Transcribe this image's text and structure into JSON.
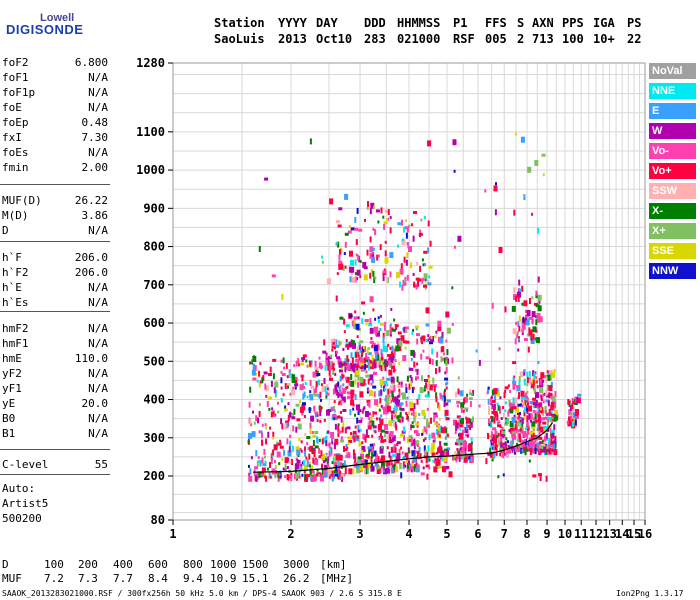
{
  "logo": {
    "top": "Lowell",
    "main": "DIGISONDE"
  },
  "header": {
    "row1": [
      "Station",
      "YYYY",
      "DAY",
      "DDD",
      "HHMMSS",
      "P1",
      "FFS",
      "S",
      "AXN",
      "PPS",
      "IGA",
      "PS"
    ],
    "row2": [
      "SaoLuis",
      "2013",
      "Oct10",
      "283",
      "021000",
      "RSF",
      "005",
      "2",
      "713",
      "100",
      "10+",
      "22"
    ]
  },
  "params": {
    "group1": [
      {
        "name": "foF2",
        "value": "6.800"
      },
      {
        "name": "foF1",
        "value": "N/A"
      },
      {
        "name": "foF1p",
        "value": "N/A"
      },
      {
        "name": "foE",
        "value": "N/A"
      },
      {
        "name": "foEp",
        "value": "0.48"
      },
      {
        "name": "fxI",
        "value": "7.30"
      },
      {
        "name": "foEs",
        "value": "N/A"
      },
      {
        "name": "fmin",
        "value": "2.00"
      }
    ],
    "group2": [
      {
        "name": "MUF(D)",
        "value": "26.22"
      },
      {
        "name": "M(D)",
        "value": "3.86"
      },
      {
        "name": "D",
        "value": "N/A"
      }
    ],
    "group3": [
      {
        "name": "h`F",
        "value": "206.0"
      },
      {
        "name": "h`F2",
        "value": "206.0"
      },
      {
        "name": "h`E",
        "value": "N/A"
      },
      {
        "name": "h`Es",
        "value": "N/A"
      }
    ],
    "group4": [
      {
        "name": "hmF2",
        "value": "N/A"
      },
      {
        "name": "hmF1",
        "value": "N/A"
      },
      {
        "name": "hmE",
        "value": "110.0"
      },
      {
        "name": "yF2",
        "value": "N/A"
      },
      {
        "name": "yF1",
        "value": "N/A"
      },
      {
        "name": "yE",
        "value": "20.0"
      },
      {
        "name": "B0",
        "value": "N/A"
      },
      {
        "name": "B1",
        "value": "N/A"
      }
    ],
    "clevel": {
      "name": "C-level",
      "value": "55"
    }
  },
  "auto": {
    "line1": "Auto:",
    "line2": "Artist5",
    "line3": "500200"
  },
  "legend": [
    {
      "label": "NoVal",
      "color": "#a0a0a0"
    },
    {
      "label": "NNE",
      "color": "#00e8f0"
    },
    {
      "label": "E",
      "color": "#3aa0ff"
    },
    {
      "label": "W",
      "color": "#b000b0"
    },
    {
      "label": "Vo-",
      "color": "#ff40b0"
    },
    {
      "label": "Vo+",
      "color": "#ff0040"
    },
    {
      "label": "SSW",
      "color": "#ffb0b0"
    },
    {
      "label": "X-",
      "color": "#008000"
    },
    {
      "label": "X+",
      "color": "#80c060"
    },
    {
      "label": "SSE",
      "color": "#d8d800"
    },
    {
      "label": "NNW",
      "color": "#1010d0"
    }
  ],
  "footer": {
    "d_label": "D",
    "d_values": [
      "100",
      "200",
      "400",
      "600",
      "800",
      "1000",
      "1500",
      "3000",
      "[km]"
    ],
    "muf_label": "MUF",
    "muf_values": [
      "7.2",
      "7.3",
      "7.7",
      "8.4",
      "9.4",
      "10.9",
      "15.1",
      "26.2",
      "[MHz]"
    ],
    "file_info": "SAAOK_2013283021000.RSF / 300fx256h 50 kHz 5.0 km / DPS-4 SAAOK 903 / 2.6 S 315.8 E",
    "version": "Ion2Png 1.3.17"
  },
  "chart_data": {
    "type": "scatter",
    "title": "",
    "xlabel": "",
    "ylabel": "",
    "xlim": [
      1,
      16
    ],
    "ylim": [
      80,
      1280
    ],
    "grid": true,
    "x_ticks": [
      "1",
      "2",
      "3",
      "4",
      "5",
      "6",
      "7",
      "8",
      "9",
      "10",
      "11",
      "12",
      "13",
      "14",
      "15",
      "16"
    ],
    "y_ticks": [
      "80",
      "200",
      "300",
      "400",
      "500",
      "600",
      "700",
      "800",
      "900",
      "1000",
      "1100",
      "1280"
    ],
    "scale_note": "frequency axis MHz (logarithmic), virtual height km",
    "trace": {
      "name": "",
      "x": [
        1.6,
        2.0,
        2.5,
        3.0,
        3.5,
        4.0,
        4.5,
        5.0,
        5.5,
        6.0,
        6.5,
        7.0,
        7.5,
        8.0,
        8.5,
        9.0,
        9.3
      ],
      "y": [
        210,
        212,
        220,
        230,
        238,
        245,
        250,
        252,
        255,
        258,
        260,
        268,
        278,
        290,
        300,
        320,
        340
      ]
    },
    "point_clusters": [
      {
        "x": [
          1.55,
          2.7
        ],
        "y": [
          200,
          520
        ],
        "n": 520
      },
      {
        "x": [
          2.7,
          3.7
        ],
        "y": [
          220,
          640
        ],
        "n": 420
      },
      {
        "x": [
          3.7,
          5.0
        ],
        "y": [
          225,
          600
        ],
        "n": 340
      },
      {
        "x": [
          5.2,
          5.8
        ],
        "y": [
          250,
          430
        ],
        "n": 110
      },
      {
        "x": [
          6.3,
          7.3
        ],
        "y": [
          260,
          440
        ],
        "n": 150
      },
      {
        "x": [
          7.3,
          9.4
        ],
        "y": [
          270,
          480
        ],
        "n": 380
      },
      {
        "x": [
          2.4,
          3.7
        ],
        "y": [
          490,
          560
        ],
        "n": 130
      },
      {
        "x": [
          2.6,
          3.6
        ],
        "y": [
          720,
          920
        ],
        "n": 90
      },
      {
        "x": [
          3.7,
          4.5
        ],
        "y": [
          700,
          880
        ],
        "n": 60
      },
      {
        "x": [
          7.3,
          8.6
        ],
        "y": [
          560,
          700
        ],
        "n": 70
      },
      {
        "x": [
          10.1,
          10.8
        ],
        "y": [
          340,
          420
        ],
        "n": 40
      },
      {
        "x": [
          1.5,
          9.0
        ],
        "y": [
          200,
          1110
        ],
        "n": 120
      }
    ]
  }
}
